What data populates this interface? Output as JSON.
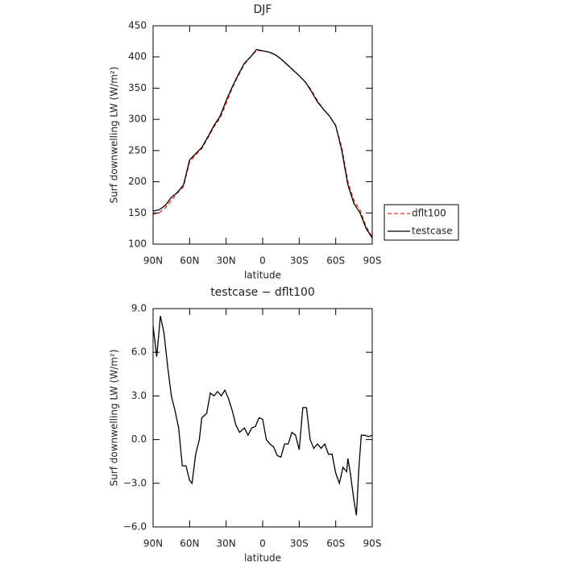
{
  "chart_data": [
    {
      "type": "line",
      "title": "DJF",
      "xlabel": "latitude",
      "ylabel": "Surf downwelling LW (W/m²)",
      "x": [
        90,
        85,
        80,
        75,
        70,
        65,
        60,
        55,
        50,
        45,
        40,
        35,
        30,
        25,
        20,
        15,
        10,
        5,
        0,
        -5,
        -10,
        -15,
        -20,
        -25,
        -30,
        -35,
        -40,
        -45,
        -50,
        -55,
        -60,
        -65,
        -70,
        -75,
        -80,
        -85,
        -90
      ],
      "series": [
        {
          "name": "dflt100",
          "color": "#e03020",
          "dash": true,
          "values": [
            148,
            150,
            158,
            170,
            182,
            192,
            232,
            243,
            253,
            270,
            288,
            302,
            325,
            350,
            370,
            388,
            400,
            410,
            410,
            408,
            404,
            397,
            388,
            379,
            370,
            360,
            347,
            330,
            316,
            305,
            290,
            255,
            200,
            170,
            155,
            128,
            112
          ]
        },
        {
          "name": "testcase",
          "color": "#000000",
          "dash": false,
          "values": [
            153,
            155,
            162,
            175,
            183,
            195,
            235,
            245,
            255,
            272,
            290,
            305,
            330,
            352,
            372,
            390,
            400,
            412,
            410,
            408,
            404,
            397,
            388,
            379,
            370,
            360,
            345,
            328,
            316,
            305,
            290,
            250,
            195,
            165,
            150,
            125,
            110
          ]
        }
      ],
      "xlim": [
        90,
        -90
      ],
      "xticks": [
        {
          "value": 90,
          "label": "90N"
        },
        {
          "value": 60,
          "label": "60N"
        },
        {
          "value": 30,
          "label": "30N"
        },
        0,
        {
          "value": -30,
          "label": "30S"
        },
        {
          "value": -60,
          "label": "60S"
        },
        {
          "value": -90,
          "label": "90S"
        }
      ],
      "ylim": [
        100,
        450
      ],
      "yticks": [
        100,
        150,
        200,
        250,
        300,
        350,
        400,
        450
      ],
      "legend": "right"
    },
    {
      "type": "line",
      "title": "testcase − dflt100",
      "xlabel": "latitude",
      "ylabel": "Surf downwelling LW (W/m²)",
      "x": [
        90,
        87,
        84,
        81,
        78,
        75,
        72,
        69,
        66,
        63,
        60,
        58,
        55,
        52,
        50,
        46,
        43,
        40,
        37,
        34,
        31,
        28,
        25,
        22,
        19,
        15,
        12,
        9,
        6,
        3,
        0,
        -3,
        -6,
        -9,
        -12,
        -15,
        -18,
        -21,
        -24,
        -27,
        -30,
        -33,
        -36,
        -39,
        -42,
        -45,
        -48,
        -51,
        -54,
        -57,
        -60,
        -63,
        -66,
        -69,
        -70,
        -72,
        -75,
        -77,
        -79,
        -81,
        -84,
        -87,
        -90
      ],
      "series": [
        {
          "name": "testcase − dflt100",
          "color": "#000000",
          "dash": false,
          "values": [
            7.8,
            5.7,
            8.5,
            7.3,
            5.0,
            3.0,
            2.0,
            0.8,
            -1.8,
            -1.8,
            -2.8,
            -3.0,
            -1.0,
            0,
            1.5,
            1.8,
            3.2,
            3.0,
            3.3,
            3.0,
            3.4,
            2.8,
            2.0,
            1.0,
            0.5,
            0.8,
            0.3,
            0.8,
            0.9,
            1.5,
            1.4,
            0,
            -0.3,
            -0.5,
            -1.1,
            -1.2,
            -0.3,
            -0.3,
            0.5,
            0.3,
            -0.7,
            2.2,
            2.2,
            0,
            -0.6,
            -0.3,
            -0.6,
            -0.3,
            -1.0,
            -1.0,
            -2.3,
            -3.0,
            -1.9,
            -2.2,
            -1.3,
            -2.3,
            -4.2,
            -5.2,
            -2.0,
            0.3,
            0.3,
            0.2,
            0.3
          ]
        }
      ],
      "xlim": [
        90,
        -90
      ],
      "xticks": [
        {
          "value": 90,
          "label": "90N"
        },
        {
          "value": 60,
          "label": "60N"
        },
        {
          "value": 30,
          "label": "30N"
        },
        0,
        {
          "value": -30,
          "label": "30S"
        },
        {
          "value": -60,
          "label": "60S"
        },
        {
          "value": -90,
          "label": "90S"
        }
      ],
      "ylim": [
        -6,
        9
      ],
      "yticks": [
        {
          "value": -6,
          "label": "−6.0"
        },
        {
          "value": -3,
          "label": "−3.0"
        },
        {
          "value": 0,
          "label": "0.0"
        },
        {
          "value": 3,
          "label": "3.0"
        },
        {
          "value": 6,
          "label": "6.0"
        },
        {
          "value": 9,
          "label": "9.0"
        }
      ]
    }
  ]
}
